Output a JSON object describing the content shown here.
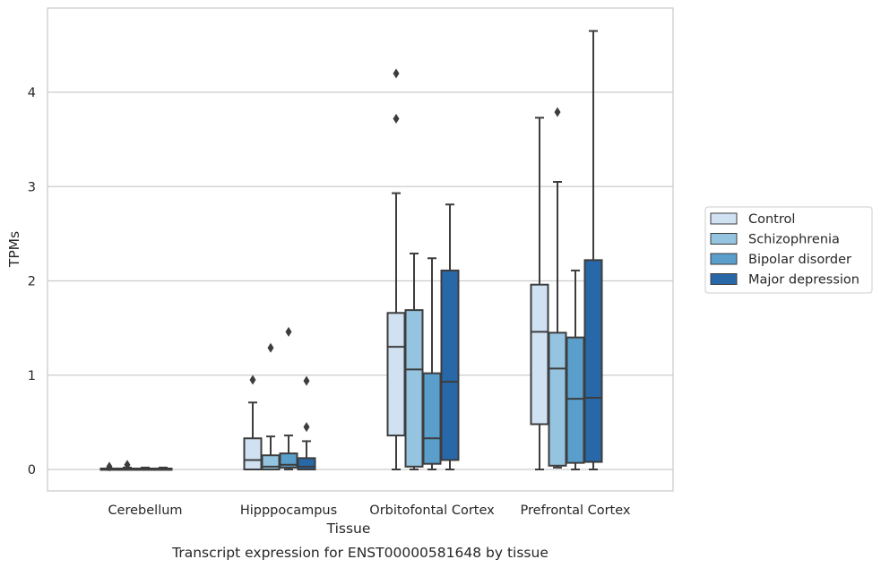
{
  "chart_data": {
    "type": "box",
    "title": "",
    "caption": "Transcript expression for ENST00000581648 by tissue",
    "xlabel": "Tissue",
    "ylabel": "TPMs",
    "ylim": [
      -0.22,
      4.88
    ],
    "yticks": [
      0,
      1,
      2,
      3,
      4
    ],
    "grid": "horizontal",
    "legend_position": "right",
    "categories": [
      "Cerebellum",
      "Hipppocampus",
      "Orbitofontal Cortex",
      "Prefrontal Cortex"
    ],
    "series": [
      {
        "name": "Control",
        "color": "#d0e1f2",
        "boxes": [
          {
            "whislo": 0.0,
            "q1": 0.0,
            "med": 0.0,
            "q3": 0.01,
            "whishi": 0.01,
            "fliers": [
              0.03
            ]
          },
          {
            "whislo": 0.0,
            "q1": 0.0,
            "med": 0.1,
            "q3": 0.33,
            "whishi": 0.71,
            "fliers": [
              0.95
            ]
          },
          {
            "whislo": 0.0,
            "q1": 0.36,
            "med": 1.3,
            "q3": 1.66,
            "whishi": 2.93,
            "fliers": [
              3.72,
              4.2
            ]
          },
          {
            "whislo": 0.0,
            "q1": 0.48,
            "med": 1.46,
            "q3": 1.96,
            "whishi": 3.73,
            "fliers": []
          }
        ]
      },
      {
        "name": "Schizophrenia",
        "color": "#94c4df",
        "boxes": [
          {
            "whislo": 0.0,
            "q1": 0.0,
            "med": 0.0,
            "q3": 0.01,
            "whishi": 0.02,
            "fliers": [
              0.05
            ]
          },
          {
            "whislo": 0.0,
            "q1": 0.0,
            "med": 0.03,
            "q3": 0.15,
            "whishi": 0.35,
            "fliers": [
              1.29
            ]
          },
          {
            "whislo": 0.0,
            "q1": 0.03,
            "med": 1.06,
            "q3": 1.69,
            "whishi": 2.29,
            "fliers": []
          },
          {
            "whislo": 0.02,
            "q1": 0.04,
            "med": 1.07,
            "q3": 1.45,
            "whishi": 3.05,
            "fliers": [
              3.79
            ]
          }
        ]
      },
      {
        "name": "Bipolar disorder",
        "color": "#5a9fcb",
        "boxes": [
          {
            "whislo": 0.0,
            "q1": 0.0,
            "med": 0.0,
            "q3": 0.01,
            "whishi": 0.02,
            "fliers": []
          },
          {
            "whislo": 0.0,
            "q1": 0.02,
            "med": 0.05,
            "q3": 0.17,
            "whishi": 0.36,
            "fliers": [
              1.46
            ]
          },
          {
            "whislo": 0.0,
            "q1": 0.06,
            "med": 0.33,
            "q3": 1.02,
            "whishi": 2.24,
            "fliers": []
          },
          {
            "whislo": 0.0,
            "q1": 0.07,
            "med": 0.75,
            "q3": 1.4,
            "whishi": 2.11,
            "fliers": []
          }
        ]
      },
      {
        "name": "Major depression",
        "color": "#2868a8",
        "boxes": [
          {
            "whislo": 0.0,
            "q1": 0.0,
            "med": 0.0,
            "q3": 0.01,
            "whishi": 0.02,
            "fliers": []
          },
          {
            "whislo": 0.0,
            "q1": 0.0,
            "med": 0.03,
            "q3": 0.12,
            "whishi": 0.3,
            "fliers": [
              0.45,
              0.94
            ]
          },
          {
            "whislo": 0.0,
            "q1": 0.1,
            "med": 0.93,
            "q3": 2.11,
            "whishi": 2.81,
            "fliers": []
          },
          {
            "whislo": 0.0,
            "q1": 0.08,
            "med": 0.76,
            "q3": 2.22,
            "whishi": 4.65,
            "fliers": []
          }
        ]
      }
    ]
  },
  "colors": {
    "background": "#ffffff",
    "grid": "#cccccc",
    "spine": "#cccccc",
    "line": "#3d3d3d",
    "text": "#262626"
  }
}
